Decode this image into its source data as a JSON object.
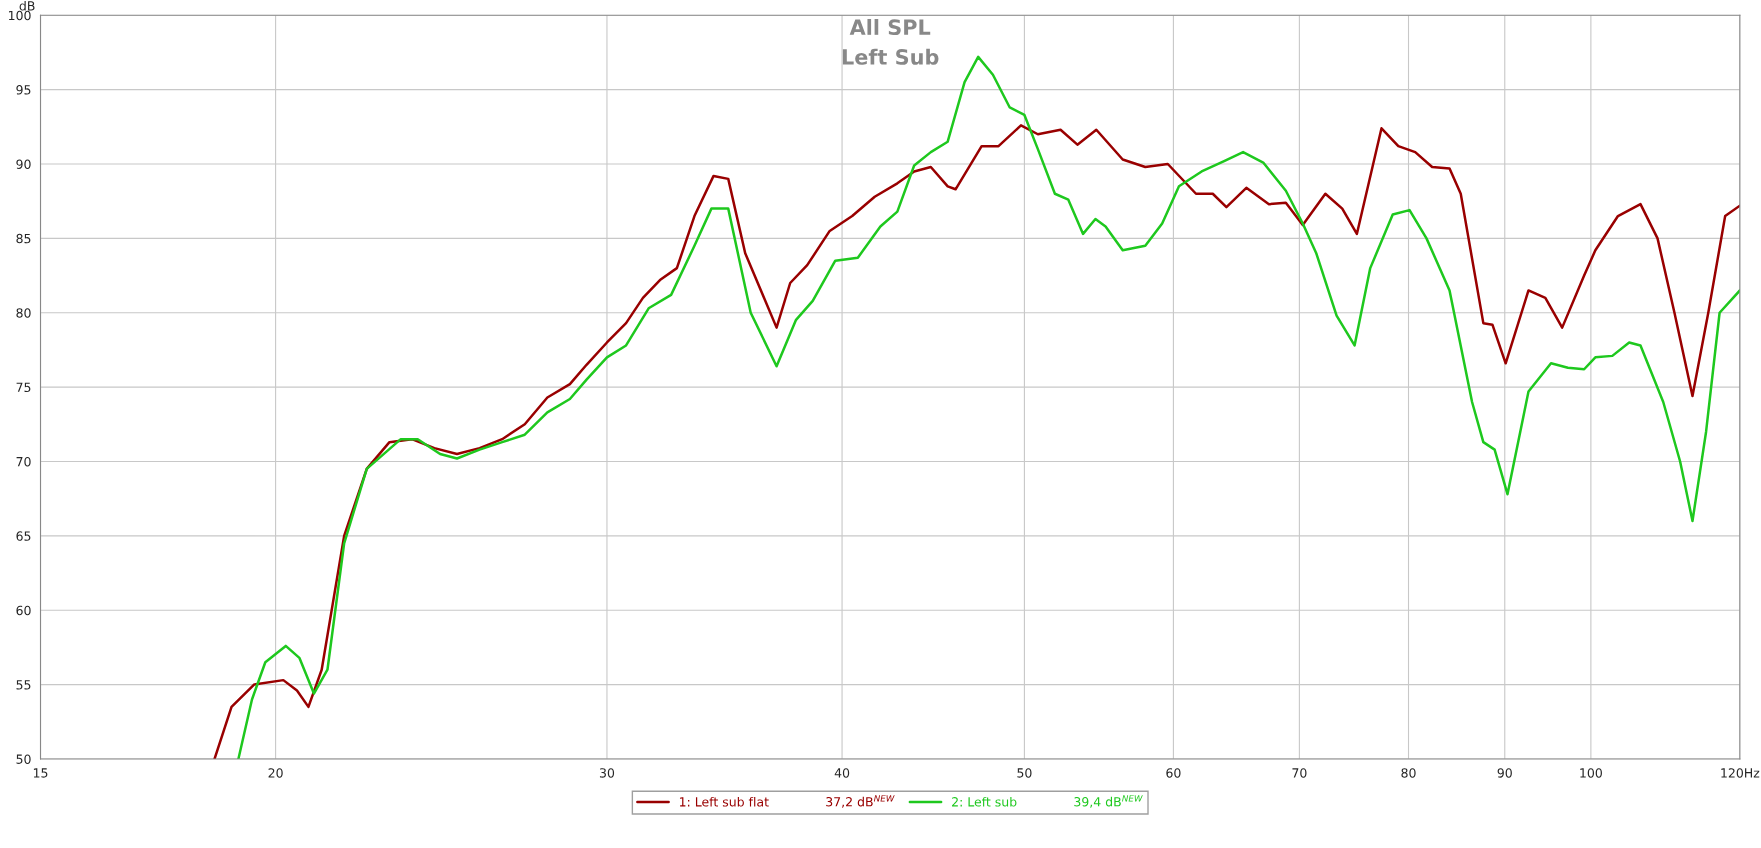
{
  "chart_data": {
    "type": "line",
    "title": "All SPL",
    "subtitle": "Left Sub",
    "ylabel": "dB",
    "log": "x",
    "grid": true,
    "legend": "bottom",
    "marker": "none",
    "line_style": "solid",
    "xlim": [
      15,
      120
    ],
    "ylim": [
      50,
      100
    ],
    "xticks": [
      15,
      20,
      30,
      40,
      50,
      60,
      70,
      80,
      90,
      100,
      {
        "value": 120,
        "label": "120Hz"
      }
    ],
    "yticks": [
      50,
      55,
      60,
      65,
      70,
      75,
      80,
      85,
      90,
      95,
      100
    ],
    "annotations": [
      "37,2 dB$^{NEW}$",
      "39,4 dB$^{NEW}$"
    ],
    "series": [
      {
        "name": "1: Left sub flat",
        "color": "#990000",
        "x": [
          18.56,
          18.95,
          19.48,
          20.19,
          20.53,
          20.82,
          21.16,
          21.75,
          22.36,
          22.99,
          23.63,
          24.29,
          24.97,
          25.67,
          26.39,
          27.13,
          27.89,
          28.67,
          29.26,
          30,
          30.71,
          31.35,
          32.01,
          32.68,
          33.39,
          34.18,
          34.8,
          35.53,
          36.92,
          37.54,
          38.33,
          39.4,
          40.5,
          41.63,
          42.8,
          43.69,
          44.59,
          45.52,
          45.96,
          47.45,
          48.44,
          49.79,
          50.83,
          52.26,
          53.35,
          54.6,
          56.39,
          57.97,
          59.59,
          61.68,
          62.96,
          64.02,
          65.6,
          67.44,
          68.85,
          70.29,
          72.26,
          73.77,
          75.1,
          77.4,
          79.01,
          80.66,
          82.35,
          84.12,
          85.28,
          87.67,
          88.65,
          90.1,
          92.65,
          94.58,
          96.55,
          99.18,
          100.55,
          103.37,
          106.26,
          108.5,
          110.77,
          113.24,
          115.45,
          117.86,
          120
        ],
        "values": [
          50,
          53.5,
          55,
          55.3,
          54.6,
          53.5,
          56,
          65,
          69.5,
          71.3,
          71.5,
          70.9,
          70.5,
          70.9,
          71.5,
          72.5,
          74.3,
          75.2,
          76.5,
          78,
          79.3,
          81,
          82.2,
          83,
          86.5,
          89.2,
          89,
          84,
          79,
          82,
          83.2,
          85.5,
          86.5,
          87.8,
          88.7,
          89.5,
          89.8,
          88.5,
          88.3,
          91.2,
          91.2,
          92.6,
          92,
          92.3,
          91.3,
          92.3,
          90.3,
          89.8,
          90,
          88,
          88,
          87.1,
          88.4,
          87.3,
          87.4,
          85.9,
          88,
          87,
          85.3,
          92.4,
          91.2,
          90.8,
          89.8,
          89.7,
          88,
          79.3,
          79.2,
          76.6,
          81.5,
          81,
          79,
          82.5,
          84.2,
          86.5,
          87.3,
          85,
          80,
          74.4,
          80,
          86.5,
          87.2
        ]
      },
      {
        "name": "2: Left sub",
        "color": "#1ec81e",
        "x": [
          19.11,
          19.43,
          19.75,
          20.25,
          20.59,
          20.96,
          21.31,
          21.75,
          22.36,
          23.31,
          23.8,
          24.46,
          24.97,
          25.67,
          26.39,
          27.13,
          27.89,
          28.67,
          29.26,
          30,
          30.71,
          31.57,
          32.45,
          33.39,
          34.09,
          34.8,
          35.77,
          36.92,
          37.8,
          38.59,
          39.67,
          40.78,
          41.92,
          42.8,
          43.69,
          44.59,
          45.52,
          46.47,
          47.25,
          48.11,
          49.11,
          50,
          50.83,
          51.9,
          52.76,
          53.72,
          54.54,
          55.22,
          56.39,
          57.97,
          59.18,
          60.41,
          62.11,
          63.84,
          65.34,
          66.97,
          68.85,
          70.29,
          71.46,
          73.26,
          74.89,
          76.34,
          78.47,
          80.1,
          81.78,
          84.12,
          86.47,
          87.67,
          88.89,
          90.3,
          92.65,
          95.24,
          97.23,
          99.18,
          100.55,
          102.66,
          104.8,
          106.26,
          109.26,
          111.54,
          113.24,
          115.14,
          117.06,
          120
        ],
        "values": [
          50,
          54,
          56.5,
          57.6,
          56.8,
          54.4,
          56,
          64.5,
          69.5,
          71.5,
          71.5,
          70.5,
          70.2,
          70.8,
          71.3,
          71.8,
          73.3,
          74.2,
          75.5,
          77,
          77.8,
          80.3,
          81.2,
          84.5,
          87,
          87,
          80,
          76.4,
          79.5,
          80.8,
          83.5,
          83.7,
          85.8,
          86.8,
          89.9,
          90.8,
          91.5,
          95.5,
          97.2,
          96,
          93.8,
          93.3,
          91,
          88,
          87.6,
          85.3,
          86.3,
          85.8,
          84.2,
          84.5,
          86,
          88.5,
          89.5,
          90.2,
          90.8,
          90.1,
          88.2,
          86,
          84,
          79.8,
          77.8,
          83,
          86.6,
          86.9,
          85,
          81.5,
          74,
          71.3,
          70.8,
          67.8,
          74.7,
          76.6,
          76.3,
          76.2,
          77,
          77.1,
          78,
          77.8,
          74,
          70,
          66,
          72,
          80,
          81.5
        ]
      }
    ]
  }
}
